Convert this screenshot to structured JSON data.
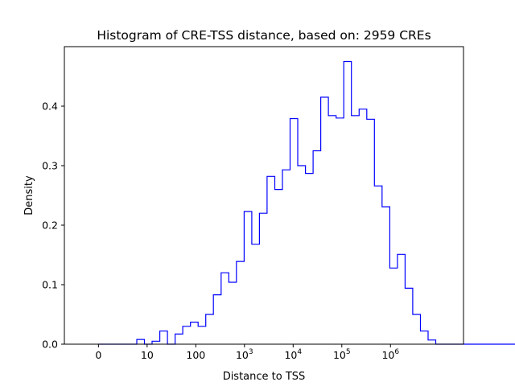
{
  "chart_data": {
    "type": "histogram",
    "title": "Histogram of CRE-TSS distance, based on: 2959 CREs",
    "xlabel": "Distance to TSS",
    "ylabel": "Density",
    "xscale": "symlog",
    "xlim": [
      -0.7,
      7.5
    ],
    "ylim": [
      0,
      0.5
    ],
    "grid": false,
    "legend": "none",
    "line_color": "#0000ff",
    "x_ticks": [
      {
        "value": 0,
        "label": "0",
        "sup": ""
      },
      {
        "value": 1,
        "label": "10",
        "sup": ""
      },
      {
        "value": 2,
        "label": "100",
        "sup": ""
      },
      {
        "value": 3,
        "label": "10",
        "sup": "3"
      },
      {
        "value": 4,
        "label": "10",
        "sup": "4"
      },
      {
        "value": 5,
        "label": "10",
        "sup": "5"
      },
      {
        "value": 6,
        "label": "10",
        "sup": "6"
      }
    ],
    "y_ticks": [
      {
        "value": 0.0,
        "label": "0.0"
      },
      {
        "value": 0.1,
        "label": "0.1"
      },
      {
        "value": 0.2,
        "label": "0.2"
      },
      {
        "value": 0.3,
        "label": "0.3"
      },
      {
        "value": 0.4,
        "label": "0.4"
      }
    ],
    "bin_width_log10": 0.1575,
    "bin_start_log10": 0.0,
    "densities": [
      0,
      0,
      0,
      0,
      0,
      0.008,
      0,
      0.005,
      0.022,
      0,
      0.017,
      0.03,
      0.037,
      0.03,
      0.05,
      0.083,
      0.12,
      0.104,
      0.139,
      0.223,
      0.168,
      0.22,
      0.282,
      0.26,
      0.293,
      0.379,
      0.3,
      0.287,
      0.325,
      0.415,
      0.384,
      0.38,
      0.475,
      0.384,
      0.395,
      0.378,
      0.266,
      0.231,
      0.128,
      0.151,
      0.094,
      0.05,
      0.022,
      0.007,
      0,
      0,
      0,
      0,
      0,
      0,
      0,
      0,
      0,
      0,
      0,
      0,
      0,
      0,
      0,
      0,
      0,
      0,
      0,
      0,
      0.007
    ]
  }
}
